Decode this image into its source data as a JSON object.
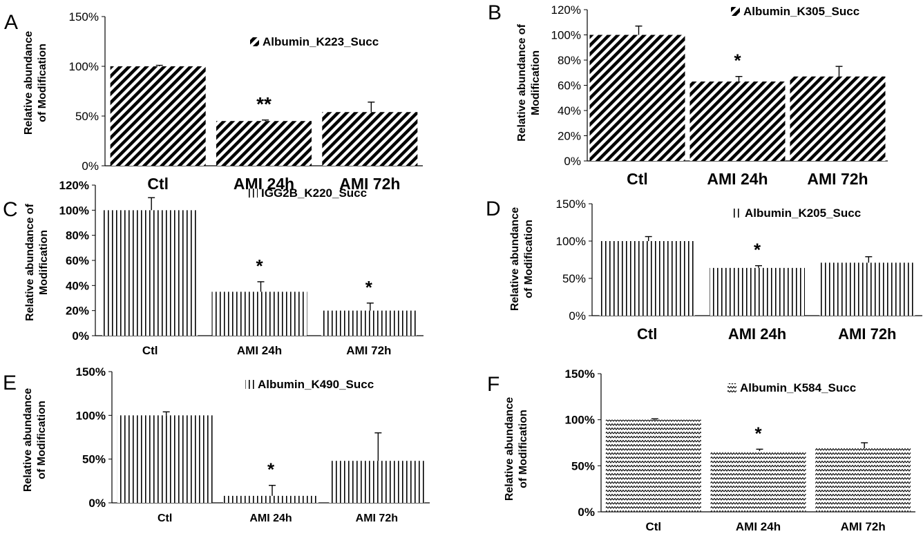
{
  "figure": {
    "background": "#ffffff",
    "bar_color": "#000000"
  },
  "chart_data": [
    {
      "panel_label": "A",
      "type": "bar",
      "pattern": "diagonal",
      "categories": [
        "Ctl",
        "AMI 24h",
        "AMI 72h"
      ],
      "series": [
        {
          "name": "Albumin_K223_Succ",
          "values": [
            100,
            45,
            54
          ],
          "errors": [
            1,
            1,
            10
          ]
        }
      ],
      "significance": [
        "",
        "**",
        ""
      ],
      "title": "",
      "xlabel": "",
      "ylabel": [
        "Relative abundance",
        "of Modification"
      ],
      "ylim": [
        0,
        150
      ],
      "yticks": [
        "0%",
        "50%",
        "100%",
        "150%"
      ],
      "grid": false,
      "legend_position": "top-right"
    },
    {
      "panel_label": "B",
      "type": "bar",
      "pattern": "diagonal",
      "categories": [
        "Ctl",
        "AMI 24h",
        "AMI 72h"
      ],
      "series": [
        {
          "name": "Albumin_K305_Succ",
          "values": [
            100,
            63,
            67
          ],
          "errors": [
            7,
            4,
            8
          ]
        }
      ],
      "significance": [
        "",
        "*",
        ""
      ],
      "title": "",
      "xlabel": "",
      "ylabel": [
        "Relative abundance of",
        "Modification"
      ],
      "ylim": [
        0,
        120
      ],
      "yticks": [
        "0%",
        "20%",
        "40%",
        "60%",
        "80%",
        "100%",
        "120%"
      ],
      "grid": false,
      "legend_position": "top-right"
    },
    {
      "panel_label": "C",
      "type": "bar",
      "pattern": "vertical",
      "categories": [
        "Ctl",
        "AMI 24h",
        "AMI 72h"
      ],
      "series": [
        {
          "name": "IGG2B_K220_Succ",
          "values": [
            100,
            35,
            20
          ],
          "errors": [
            10,
            8,
            6
          ]
        }
      ],
      "significance": [
        "",
        "*",
        "*"
      ],
      "title": "",
      "xlabel": "",
      "ylabel": [
        "Relative abundance of",
        "Modification"
      ],
      "ylim": [
        0,
        120
      ],
      "yticks": [
        "0%",
        "20%",
        "40%",
        "60%",
        "80%",
        "100%",
        "120%"
      ],
      "grid": false,
      "legend_position": "top-right"
    },
    {
      "panel_label": "D",
      "type": "bar",
      "pattern": "vertical",
      "categories": [
        "Ctl",
        "AMI 24h",
        "AMI 72h"
      ],
      "series": [
        {
          "name": "Albumin_K205_Succ",
          "values": [
            100,
            64,
            71
          ],
          "errors": [
            6,
            3,
            8
          ]
        }
      ],
      "significance": [
        "",
        "*",
        ""
      ],
      "title": "",
      "xlabel": "",
      "ylabel": [
        "Relative abundance",
        "of Modification"
      ],
      "ylim": [
        0,
        150
      ],
      "yticks": [
        "0%",
        "50%",
        "100%",
        "150%"
      ],
      "grid": false,
      "legend_position": "top-right"
    },
    {
      "panel_label": "E",
      "type": "bar",
      "pattern": "vertical",
      "categories": [
        "Ctl",
        "AMI 24h",
        "AMI 72h"
      ],
      "series": [
        {
          "name": "Albumin_K490_Succ",
          "values": [
            100,
            8,
            48
          ],
          "errors": [
            4,
            12,
            32
          ]
        }
      ],
      "significance": [
        "",
        "*",
        ""
      ],
      "title": "",
      "xlabel": "",
      "ylabel": [
        "Relative abundance",
        "of Modification"
      ],
      "ylim": [
        0,
        150
      ],
      "yticks": [
        "0%",
        "50%",
        "100%",
        "150%"
      ],
      "grid": false,
      "legend_position": "top-right"
    },
    {
      "panel_label": "F",
      "type": "bar",
      "pattern": "zigzag",
      "categories": [
        "Ctl",
        "AMI 24h",
        "AMI 72h"
      ],
      "series": [
        {
          "name": "Albumin_K584_Succ",
          "values": [
            100,
            66,
            69
          ],
          "errors": [
            1,
            2,
            6
          ]
        }
      ],
      "significance": [
        "",
        "*",
        ""
      ],
      "title": "",
      "xlabel": "",
      "ylabel": [
        "Relative abundance",
        "of Modification"
      ],
      "ylim": [
        0,
        150
      ],
      "yticks": [
        "0%",
        "50%",
        "100%",
        "150%"
      ],
      "grid": false,
      "legend_position": "top-right"
    }
  ]
}
